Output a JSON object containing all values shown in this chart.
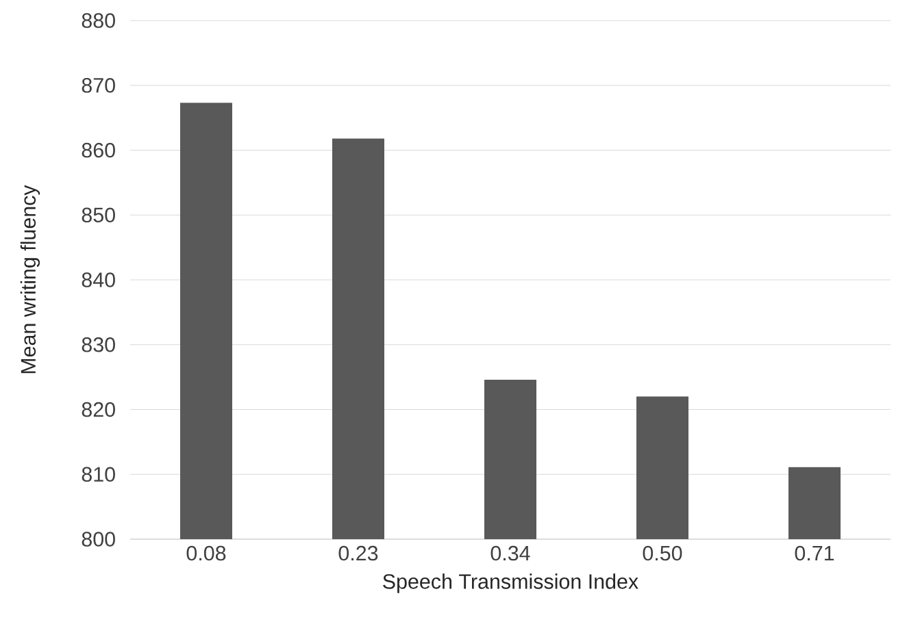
{
  "chart_data": {
    "type": "bar",
    "xlabel": "Speech Transmission Index",
    "ylabel": "Mean writing fluency",
    "categories": [
      "0.08",
      "0.23",
      "0.34",
      "0.50",
      "0.71"
    ],
    "values": [
      867.3,
      861.8,
      824.6,
      822.0,
      811.1
    ],
    "color": "#595959",
    "ylim": [
      800,
      880
    ],
    "yticks": [
      800,
      810,
      820,
      830,
      840,
      850,
      860,
      870,
      880
    ],
    "grid": "y"
  }
}
